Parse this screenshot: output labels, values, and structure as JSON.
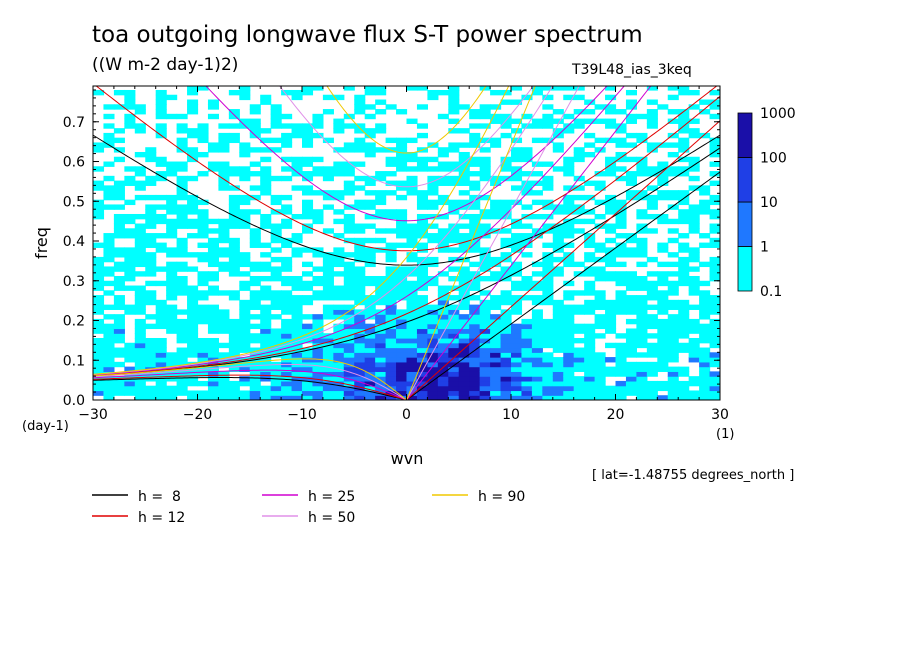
{
  "header": {
    "title": "toa outgoing longwave flux S-T power spectrum",
    "subtitle": "((W m-2 day-1)2)",
    "run_name": "T39L48_ias_3keq",
    "lat_note": "[ lat=-1.48755 degrees_north ]"
  },
  "chart_data": {
    "type": "heatmap",
    "xlabel": "wvn",
    "ylabel": "freq",
    "x_unit": "(1)",
    "y_unit": "(day-1)",
    "xlim": [
      -30,
      30
    ],
    "ylim": [
      0,
      0.79
    ],
    "xticks": [
      "-30",
      "-20",
      "-10",
      "0",
      "10",
      "20",
      "30"
    ],
    "yticks": [
      "0.0",
      "0.1",
      "0.2",
      "0.3",
      "0.4",
      "0.5",
      "0.6",
      "0.7"
    ],
    "colorbar": {
      "levels": [
        "0.1",
        "1",
        "10",
        "100",
        "1000"
      ],
      "colors": [
        "#00ffff",
        "#1f78ff",
        "#1f3fe6",
        "#1a0fa8"
      ],
      "scale": "log"
    },
    "dispersion_curves": [
      {
        "name": "h =  8",
        "h": 8,
        "color": "#000000"
      },
      {
        "name": "h = 12",
        "h": 12,
        "color": "#e00000"
      },
      {
        "name": "h = 25",
        "h": 25,
        "color": "#d000d0"
      },
      {
        "name": "h = 50",
        "h": 50,
        "color": "#e090e8"
      },
      {
        "name": "h = 90",
        "h": 90,
        "color": "#f0c800"
      }
    ]
  }
}
